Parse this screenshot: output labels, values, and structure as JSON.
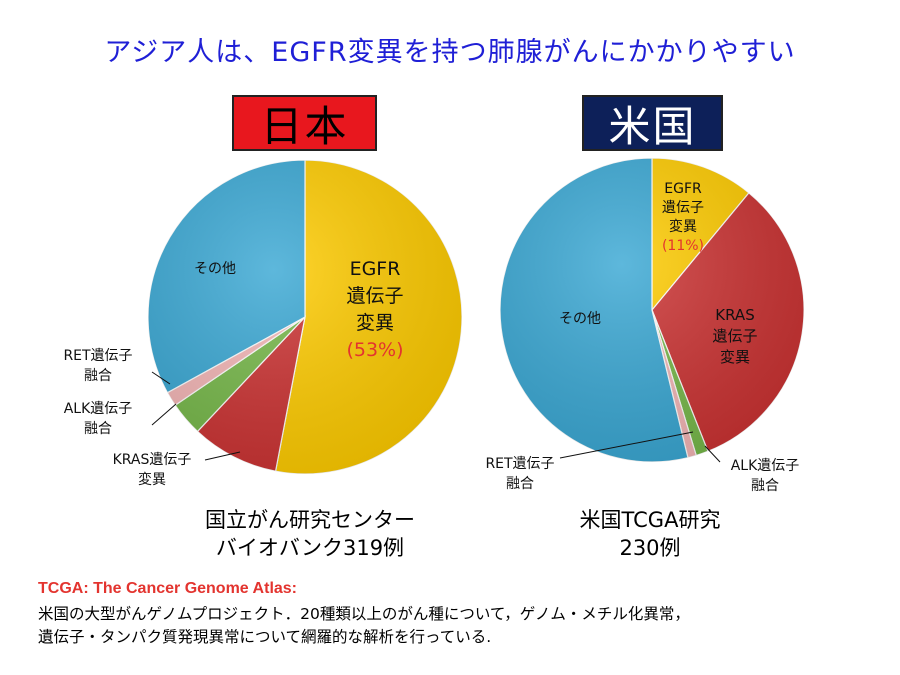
{
  "title": "アジア人は、EGFR変異を持つ肺腺がんにかかりやすい",
  "badges": {
    "japan": "日本",
    "us": "米国"
  },
  "captions": {
    "japan_line1": "国立がん研究センター",
    "japan_line2": "バイオバンク319例",
    "us_line1": "米国TCGA研究",
    "us_line2": "230例"
  },
  "footnote": {
    "title": "TCGA: The Cancer Genome Atlas:",
    "line1": "米国の大型がんゲノムプロジェクト．20種類以上のがん種について，ゲノム・メチル化異常，",
    "line2": "遺伝子・タンパク質発現異常について網羅的な解析を行っている."
  },
  "colors": {
    "egfr": "#ffcc00",
    "kras": "#cc3333",
    "alk": "#77b94a",
    "ret": "#f4b6b6",
    "other": "#3aa8d4",
    "title": "#1f1fd6"
  },
  "chart_data": [
    {
      "type": "pie",
      "title": "日本",
      "slices": [
        {
          "key": "egfr",
          "label": [
            "EGFR",
            "遺伝子",
            "変異"
          ],
          "pct_label": "(53%)",
          "value": 53
        },
        {
          "key": "kras",
          "label": [
            "KRAS遺伝子",
            "変異"
          ],
          "value": 9
        },
        {
          "key": "alk",
          "label": [
            "ALK遺伝子",
            "融合"
          ],
          "value": 3.5
        },
        {
          "key": "ret",
          "label": [
            "RET遺伝子",
            "融合"
          ],
          "value": 1.5
        },
        {
          "key": "other",
          "label": [
            "その他"
          ],
          "value": 33
        }
      ]
    },
    {
      "type": "pie",
      "title": "米国",
      "slices": [
        {
          "key": "egfr",
          "label": [
            "EGFR",
            "遺伝子",
            "変異"
          ],
          "pct_label": "(11%)",
          "value": 11
        },
        {
          "key": "kras",
          "label": [
            "KRAS",
            "遺伝子",
            "変異"
          ],
          "value": 33
        },
        {
          "key": "alk",
          "label": [
            "ALK遺伝子",
            "融合"
          ],
          "value": 1.3
        },
        {
          "key": "ret",
          "label": [
            "RET遺伝子",
            "融合"
          ],
          "value": 0.9
        },
        {
          "key": "other",
          "label": [
            "その他"
          ],
          "value": 53.8
        }
      ]
    }
  ]
}
